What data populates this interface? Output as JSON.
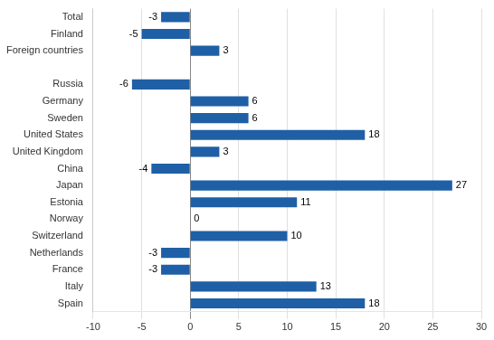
{
  "chart_data": {
    "type": "bar",
    "orientation": "horizontal",
    "categories": [
      "Spain",
      "Italy",
      "France",
      "Netherlands",
      "Switzerland",
      "Norway",
      "Estonia",
      "Japan",
      "China",
      "United Kingdom",
      "United States",
      "Sweden",
      "Germany",
      "Russia",
      null,
      "Foreign countries",
      "Finland",
      "Total"
    ],
    "values": [
      18,
      13,
      -3,
      -3,
      10,
      0,
      11,
      27,
      -4,
      3,
      18,
      6,
      6,
      -6,
      null,
      3,
      -5,
      -3
    ],
    "color": "#1F5FA6",
    "xlim": [
      -10,
      30
    ],
    "xticks": [
      -10,
      -5,
      0,
      5,
      10,
      15,
      20,
      25,
      30
    ],
    "grid": true,
    "data_labels": true
  }
}
